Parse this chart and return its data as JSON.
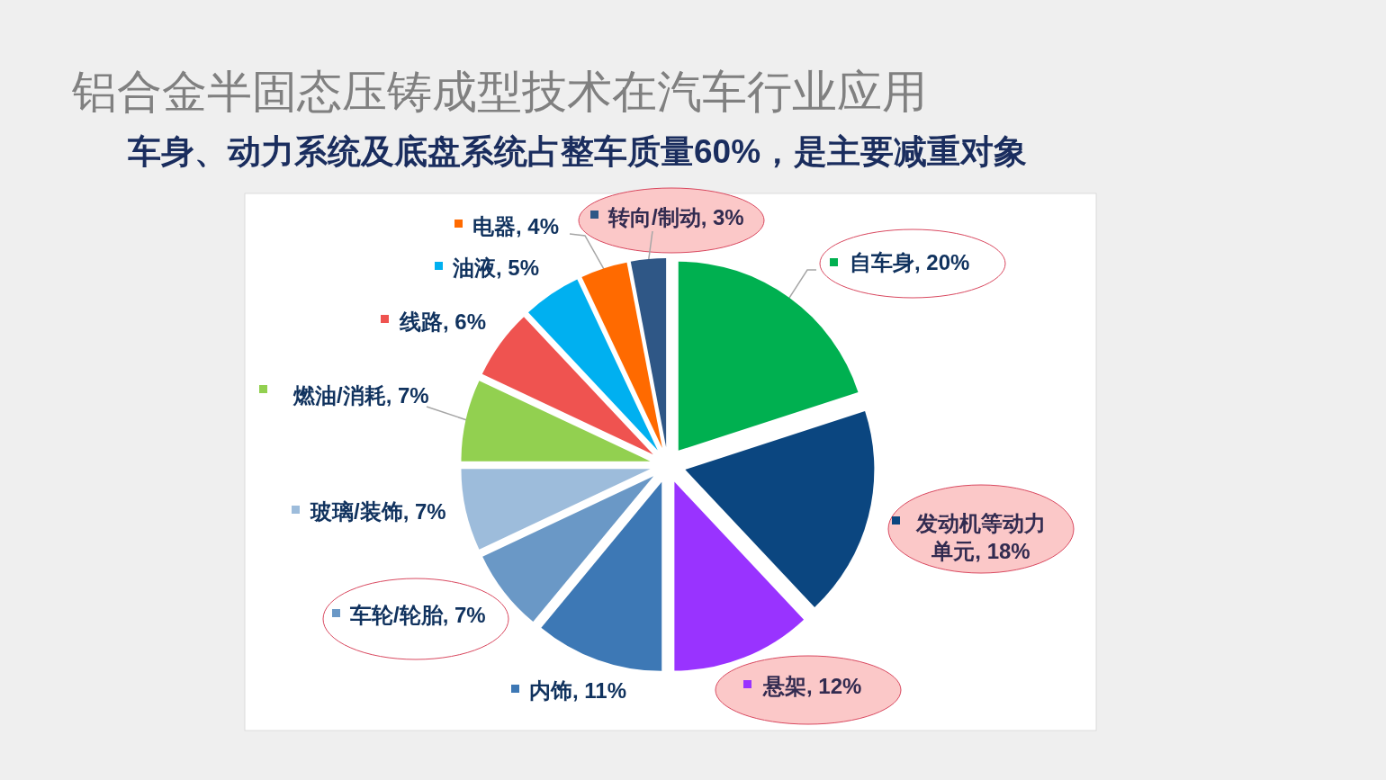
{
  "chart_data": {
    "type": "pie",
    "title": "铝合金半固态压铸成型技术在汽车行业应用",
    "subtitle": "车身、动力系统及底盘系统占整车质量60%，是主要减重对象",
    "categories": [
      "自车身",
      "发动机等动力单元",
      "悬架",
      "内饰",
      "车轮/轮胎",
      "玻璃/装饰",
      "燃油/消耗",
      "线路",
      "油液",
      "电器",
      "转向/制动"
    ],
    "values": [
      20,
      18,
      12,
      11,
      7,
      7,
      7,
      6,
      5,
      4,
      3
    ],
    "colors": [
      "#00b050",
      "#0b4680",
      "#9933ff",
      "#3d78b5",
      "#6a98c6",
      "#9dbcdb",
      "#92d050",
      "#ef5350",
      "#00b0f0",
      "#ff6a00",
      "#2f5786"
    ],
    "value_labels": [
      "20%",
      "18%",
      "12%",
      "11%",
      "7%",
      "7%",
      "7%",
      "6%",
      "5%",
      "4%",
      "3%"
    ],
    "legend": "left"
  }
}
